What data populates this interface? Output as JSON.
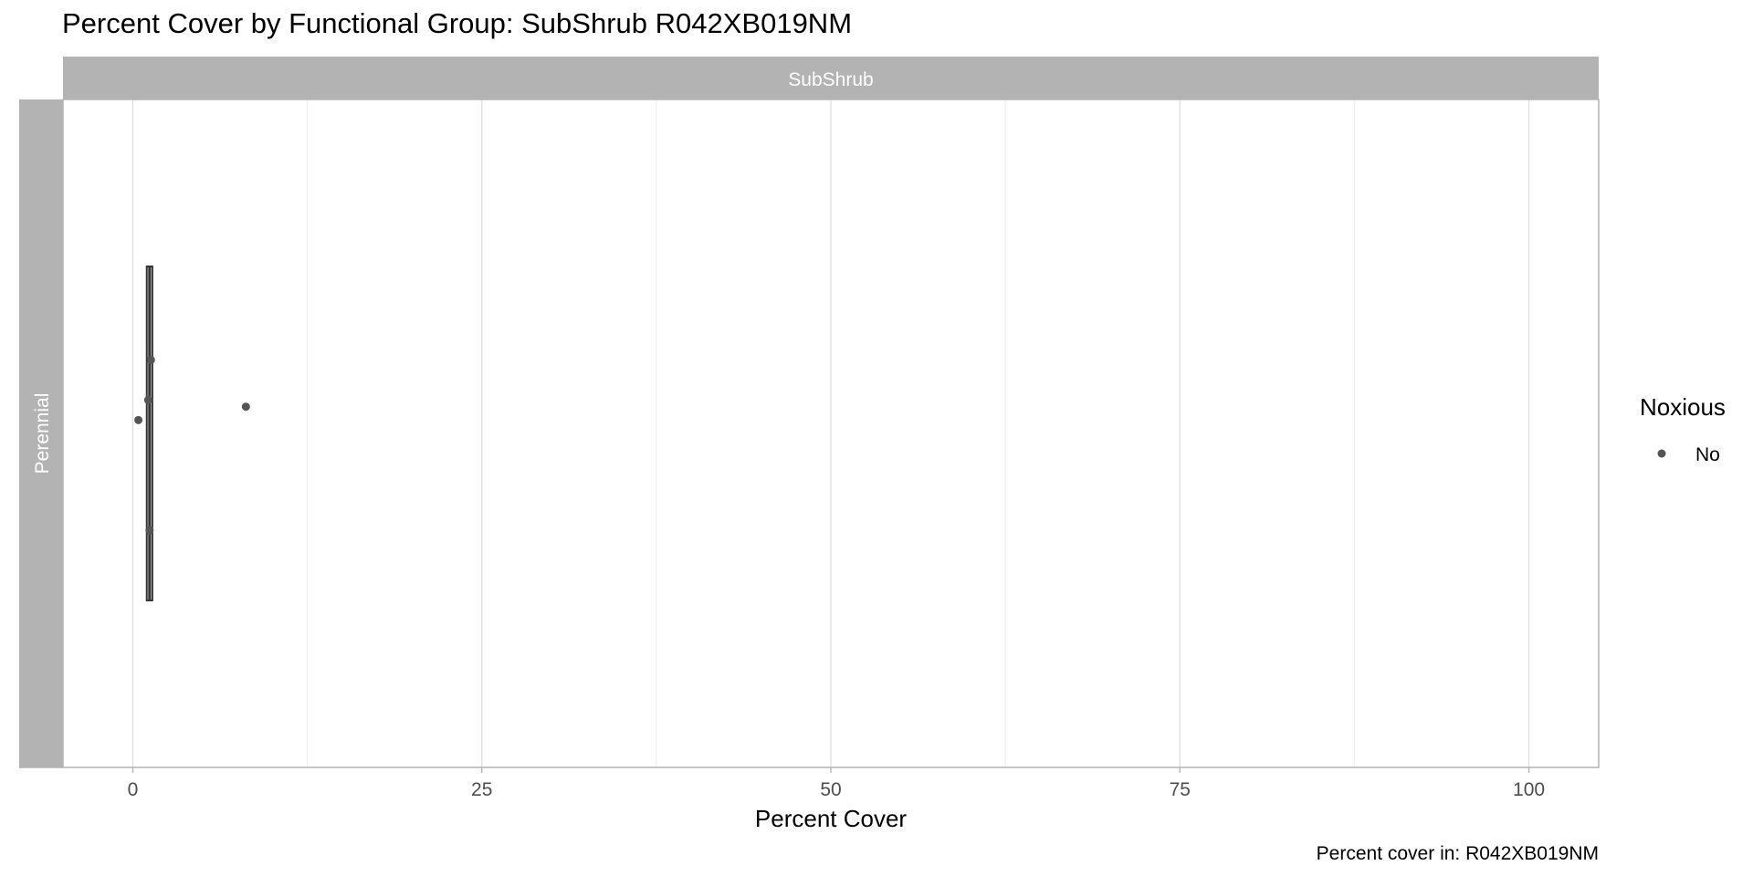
{
  "chart_data": {
    "type": "boxplot",
    "title": "Percent Cover by Functional Group: SubShrub R042XB019NM",
    "xlabel": "Percent Cover",
    "ylabel": "",
    "caption": "Percent cover in:  R042XB019NM",
    "facet_column": "SubShrub",
    "facet_row": "Perennial",
    "xlim": [
      -5,
      105
    ],
    "x_ticks": [
      0,
      25,
      50,
      75,
      100
    ],
    "x_tick_labels": [
      "0",
      "25",
      "50",
      "75",
      "100"
    ],
    "grid": true,
    "legend": {
      "title": "Noxious",
      "position": "right",
      "entries": [
        {
          "label": "No",
          "color": "#555555"
        }
      ]
    },
    "box": {
      "min": 1.0,
      "q1": 1.0,
      "median": 1.2,
      "q3": 1.4,
      "max": 1.4
    },
    "points": [
      {
        "x": 0.4,
        "jitter": 0.04,
        "noxious": "No"
      },
      {
        "x": 1.1,
        "jitter": 0.1,
        "noxious": "No"
      },
      {
        "x": 1.2,
        "jitter": -0.29,
        "noxious": "No"
      },
      {
        "x": 1.3,
        "jitter": 0.22,
        "noxious": "No"
      },
      {
        "x": 8.1,
        "jitter": 0.08,
        "noxious": "No"
      }
    ]
  }
}
